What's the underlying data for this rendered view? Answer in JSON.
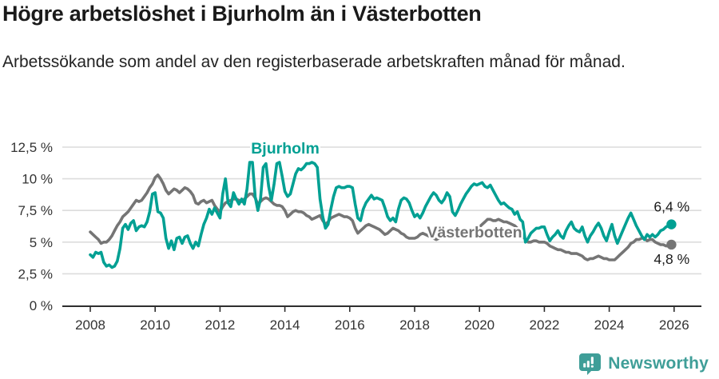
{
  "header": {
    "title": "Högre arbetslöshet i Bjurholm än i Västerbotten",
    "subtitle": "Arbetssökande som andel av den registerbaserade arbetskraften månad för månad."
  },
  "chart_data": {
    "type": "line",
    "title": "Högre arbetslöshet i Bjurholm än i Västerbotten",
    "x_start_year": 2008,
    "points_per_year": 12,
    "x_ticks": [
      "2008",
      "2010",
      "2012",
      "2014",
      "2016",
      "2018",
      "2020",
      "2022",
      "2024",
      "2026"
    ],
    "x_tick_years": [
      2008,
      2010,
      2012,
      2014,
      2016,
      2018,
      2020,
      2022,
      2024,
      2026
    ],
    "y_tick_values": [
      0,
      2.5,
      5,
      7.5,
      10,
      12.5
    ],
    "y_tick_labels": [
      "0 %",
      "2,5 %",
      "5 %",
      "7,5 %",
      "10 %",
      "12,5 %"
    ],
    "ylim": [
      0,
      13.2
    ],
    "grid": "horizontal",
    "colors": {
      "bjurholm": "#00a093",
      "vasterbotten": "#757575",
      "axis": "#2e2e2e",
      "gridline": "#dcdcdc"
    },
    "series": [
      {
        "name": "Bjurholm",
        "color": "#00a093",
        "end_label": "6,4 %",
        "values": [
          4.0,
          3.8,
          4.2,
          4.1,
          4.2,
          3.4,
          3.1,
          3.2,
          3.0,
          3.1,
          3.5,
          4.5,
          6.1,
          6.4,
          6.0,
          6.5,
          6.7,
          5.9,
          6.2,
          6.3,
          6.2,
          6.6,
          7.4,
          8.8,
          8.9,
          7.4,
          7.3,
          6.9,
          5.3,
          4.5,
          5.1,
          4.4,
          5.3,
          5.4,
          4.9,
          5.4,
          5.5,
          4.9,
          4.5,
          5.0,
          4.7,
          5.6,
          6.4,
          6.9,
          7.6,
          7.2,
          7.7,
          7.3,
          6.9,
          8.8,
          10.0,
          8.1,
          7.8,
          8.9,
          8.4,
          8.0,
          8.4,
          8.0,
          9.2,
          11.3,
          11.3,
          8.6,
          7.5,
          8.4,
          10.9,
          11.2,
          9.4,
          8.3,
          9.6,
          11.2,
          11.3,
          10.2,
          9.0,
          8.6,
          8.8,
          9.6,
          10.4,
          10.8,
          10.7,
          10.9,
          11.2,
          11.2,
          11.3,
          11.2,
          10.9,
          8.4,
          7.0,
          6.1,
          6.4,
          7.6,
          8.6,
          9.3,
          9.4,
          9.3,
          9.3,
          9.4,
          9.4,
          9.3,
          8.0,
          6.9,
          6.7,
          7.6,
          8.1,
          8.4,
          8.7,
          8.4,
          8.5,
          8.4,
          8.3,
          7.7,
          7.0,
          6.7,
          6.9,
          6.6,
          7.6,
          8.3,
          8.5,
          8.4,
          8.1,
          7.5,
          7.0,
          7.2,
          6.9,
          7.3,
          7.8,
          8.2,
          8.6,
          8.9,
          8.7,
          8.3,
          8.1,
          8.4,
          8.9,
          8.6,
          7.4,
          7.1,
          7.5,
          8.0,
          8.4,
          8.8,
          9.1,
          9.4,
          9.6,
          9.5,
          9.6,
          9.7,
          9.4,
          9.3,
          9.5,
          9.1,
          8.7,
          8.3,
          8.0,
          8.1,
          7.9,
          7.7,
          7.6,
          7.2,
          7.4,
          6.8,
          6.6,
          5.0,
          5.3,
          5.7,
          5.9,
          6.1,
          6.1,
          6.2,
          6.2,
          5.6,
          5.1,
          5.4,
          5.6,
          5.9,
          5.5,
          5.3,
          5.9,
          6.3,
          6.6,
          6.1,
          5.9,
          5.8,
          6.2,
          5.5,
          5.0,
          5.5,
          5.8,
          6.2,
          6.5,
          6.1,
          5.5,
          5.1,
          5.8,
          6.4,
          5.5,
          4.9,
          5.4,
          5.9,
          6.4,
          6.9,
          7.3,
          6.8,
          6.3,
          5.9,
          5.5,
          5.2,
          5.6,
          5.4,
          5.6,
          5.4,
          5.6,
          5.9,
          6.0,
          6.2,
          6.3,
          6.4
        ]
      },
      {
        "name": "Västerbotten",
        "color": "#757575",
        "end_label": "4,8 %",
        "values": [
          5.8,
          5.6,
          5.4,
          5.2,
          4.9,
          5.0,
          5.0,
          5.2,
          5.5,
          5.9,
          6.3,
          6.6,
          7.0,
          7.2,
          7.4,
          7.7,
          8.0,
          8.3,
          8.2,
          8.3,
          8.6,
          8.9,
          9.3,
          9.6,
          10.1,
          10.3,
          10.0,
          9.6,
          9.1,
          8.8,
          9.0,
          9.2,
          9.1,
          8.9,
          9.1,
          9.3,
          9.2,
          9.0,
          8.7,
          8.1,
          8.0,
          8.2,
          8.3,
          8.1,
          8.2,
          8.3,
          7.9,
          7.6,
          7.4,
          7.8,
          8.1,
          8.2,
          8.3,
          8.4,
          8.4,
          8.3,
          8.2,
          8.4,
          8.6,
          8.8,
          8.8,
          8.5,
          8.0,
          8.2,
          8.4,
          8.5,
          8.4,
          8.2,
          8.0,
          7.9,
          7.9,
          7.8,
          7.5,
          7.0,
          7.2,
          7.4,
          7.5,
          7.4,
          7.4,
          7.3,
          7.1,
          7.0,
          6.8,
          6.9,
          7.0,
          7.1,
          6.7,
          6.4,
          6.6,
          6.9,
          7.0,
          7.1,
          7.2,
          7.1,
          7.0,
          7.0,
          6.9,
          6.7,
          6.1,
          5.7,
          5.9,
          6.1,
          6.3,
          6.4,
          6.3,
          6.2,
          6.1,
          6.0,
          5.8,
          5.6,
          5.7,
          5.9,
          6.1,
          6.0,
          5.9,
          5.7,
          5.6,
          5.4,
          5.3,
          5.3,
          5.3,
          5.4,
          5.6,
          5.7,
          5.6,
          5.5,
          5.4,
          5.3,
          5.2,
          5.3,
          5.4,
          5.5,
          5.5,
          5.6,
          5.5,
          5.4,
          5.5,
          5.6,
          5.7,
          5.6,
          5.5,
          5.6,
          5.8,
          6.0,
          6.2,
          6.4,
          6.6,
          6.8,
          6.8,
          6.7,
          6.7,
          6.8,
          6.7,
          6.6,
          6.6,
          6.5,
          6.4,
          6.3,
          6.1,
          5.8,
          5.5,
          5.2,
          5.0,
          5.0,
          5.1,
          5.1,
          5.0,
          5.0,
          5.0,
          4.9,
          4.7,
          4.6,
          4.5,
          4.4,
          4.4,
          4.3,
          4.2,
          4.2,
          4.1,
          4.1,
          4.1,
          4.0,
          3.9,
          3.7,
          3.6,
          3.7,
          3.7,
          3.8,
          3.9,
          3.8,
          3.7,
          3.7,
          3.6,
          3.6,
          3.6,
          3.8,
          4.0,
          4.2,
          4.4,
          4.6,
          4.9,
          5.0,
          5.2,
          5.2,
          5.3,
          5.3,
          5.1,
          5.2,
          5.2,
          5.0,
          4.9,
          4.8,
          4.8,
          4.7,
          4.7,
          4.8
        ]
      }
    ]
  },
  "footer": {
    "brand": "Newsworthy",
    "logo_icon": "bar-chart-speech-bubble-icon"
  }
}
